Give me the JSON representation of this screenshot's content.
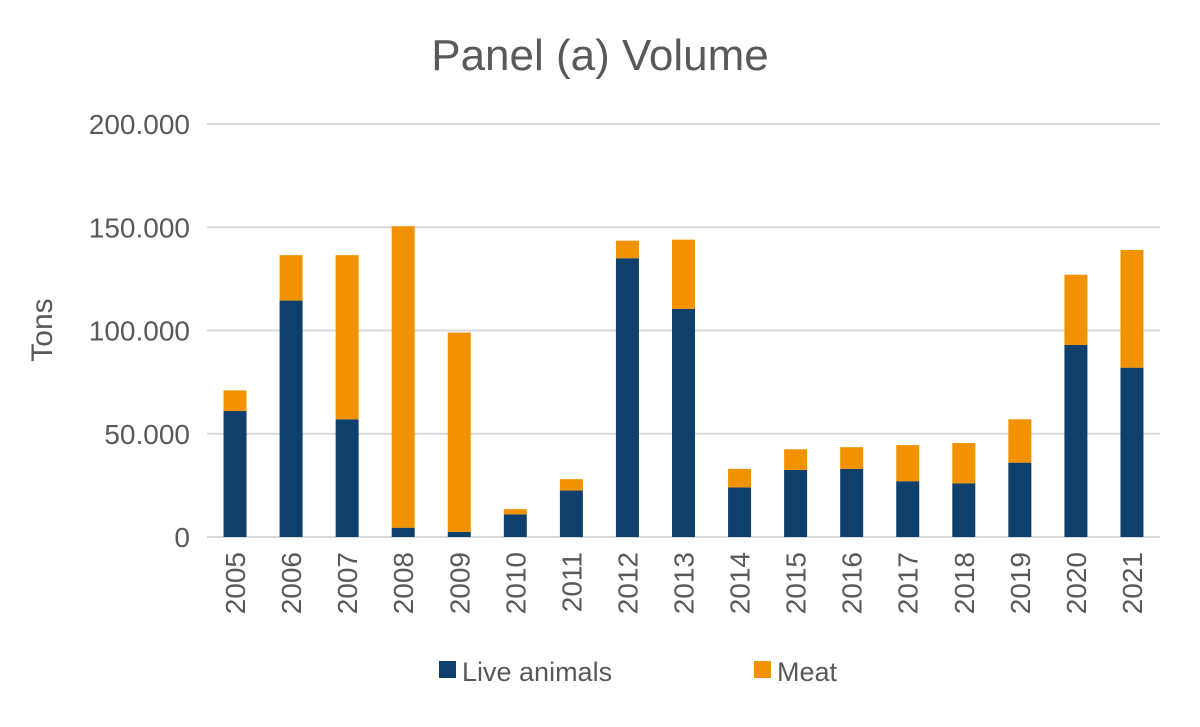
{
  "chart_data": {
    "type": "bar",
    "stacked": true,
    "title": "Panel (a) Volume",
    "xlabel": "",
    "ylabel": "Tons",
    "ylim": [
      0,
      200000
    ],
    "yticks": [
      0,
      50000,
      100000,
      150000,
      200000
    ],
    "ytick_labels": [
      "0",
      "50.000",
      "100.000",
      "150.000",
      "200.000"
    ],
    "grid": true,
    "legend_position": "bottom",
    "categories": [
      "2005",
      "2006",
      "2007",
      "2008",
      "2009",
      "2010",
      "2011",
      "2012",
      "2013",
      "2014",
      "2015",
      "2016",
      "2017",
      "2018",
      "2019",
      "2020",
      "2021"
    ],
    "series": [
      {
        "name": "Live animals",
        "color": "#0f3f6b",
        "values": [
          61000,
          114500,
          57000,
          4500,
          2500,
          11000,
          22500,
          135000,
          110500,
          24000,
          32500,
          33000,
          27000,
          26000,
          36000,
          93000,
          82000
        ]
      },
      {
        "name": "Meat",
        "color": "#f39200",
        "values": [
          10000,
          22000,
          79500,
          146000,
          96500,
          2500,
          5500,
          8500,
          33500,
          9000,
          10000,
          10500,
          17500,
          19500,
          21000,
          34000,
          57000
        ]
      }
    ]
  }
}
